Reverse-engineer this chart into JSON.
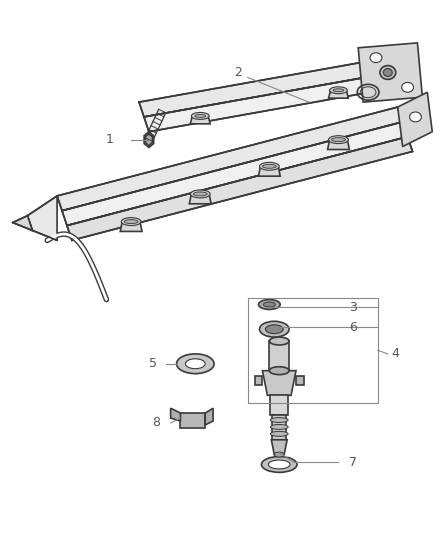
{
  "background_color": "#ffffff",
  "line_color": "#3a3a3a",
  "fill_light": "#e8e8e8",
  "fill_mid": "#cccccc",
  "fill_dark": "#999999",
  "figsize": [
    4.38,
    5.33
  ],
  "dpi": 100,
  "label_fontsize": 9,
  "label_color": "#555555",
  "callout_line_color": "#888888"
}
